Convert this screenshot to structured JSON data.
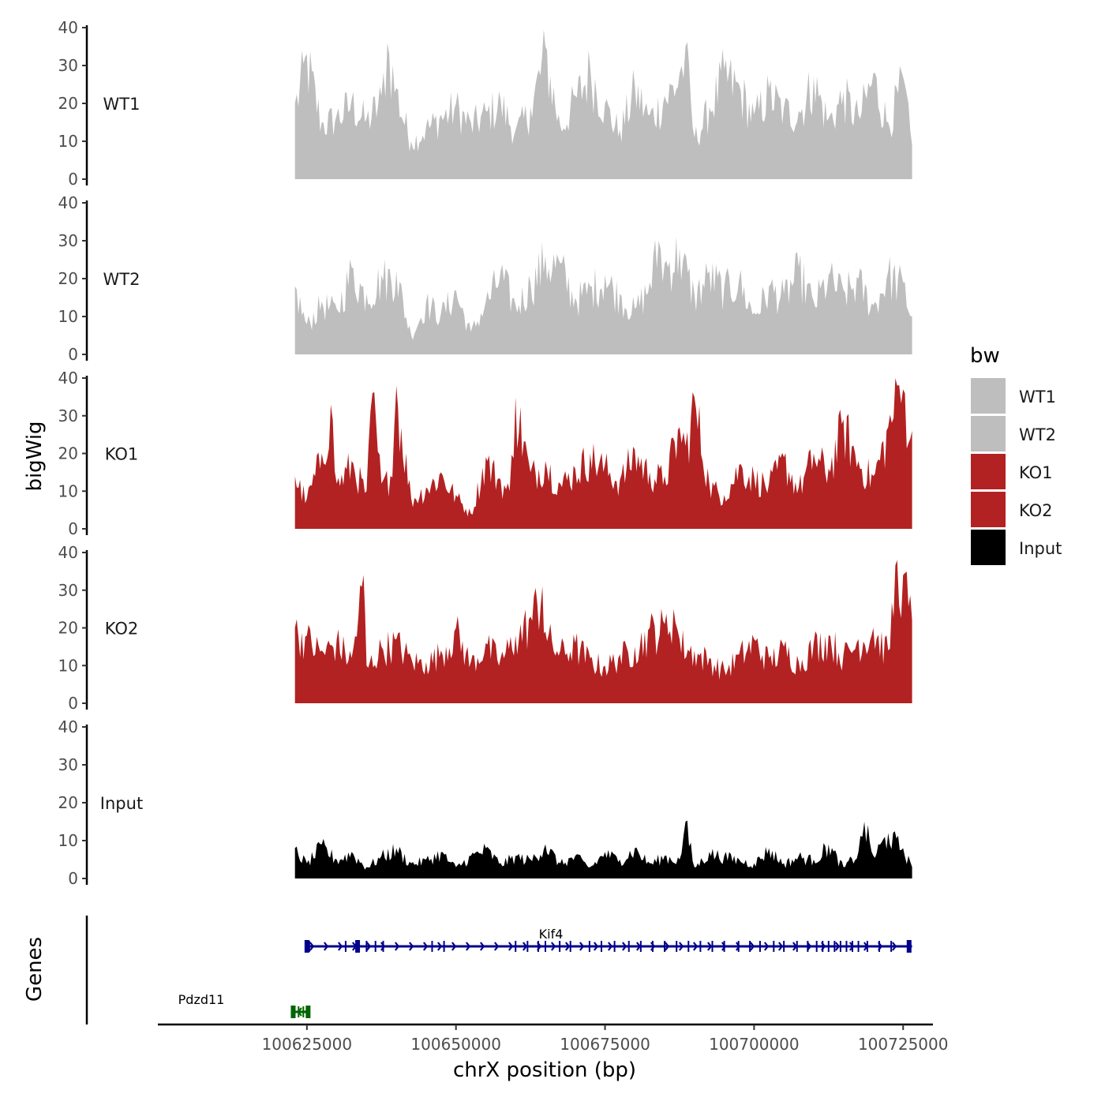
{
  "chart_data": {
    "type": "area",
    "title": "",
    "ylabel": "bigWig",
    "genes_label": "Genes",
    "xlabel": "chrX position (bp)",
    "xlim": [
      100600000,
      100730000
    ],
    "data_range": [
      100623000,
      100726500
    ],
    "x_ticks": [
      "100625000",
      "100650000",
      "100675000",
      "100700000",
      "100725000"
    ],
    "x_tick_values": [
      100625000,
      100650000,
      100675000,
      100700000,
      100725000
    ],
    "ylim": [
      0,
      40
    ],
    "y_ticks": [
      "0",
      "10",
      "20",
      "30",
      "40"
    ],
    "legend": {
      "title": "bw",
      "position": "right",
      "entries": [
        {
          "label": "WT1",
          "color": "#bebebe"
        },
        {
          "label": "WT2",
          "color": "#bebebe"
        },
        {
          "label": "KO1",
          "color": "#b22222"
        },
        {
          "label": "KO2",
          "color": "#b22222"
        },
        {
          "label": "Input",
          "color": "#000000"
        }
      ]
    },
    "series": [
      {
        "name": "WT1",
        "color": "#bebebe",
        "x": [
          100623000,
          100625000,
          100627500,
          100630000,
          100632500,
          100635000,
          100637500,
          100638500,
          100640000,
          100642500,
          100645000,
          100647500,
          100650000,
          100652500,
          100655000,
          100657500,
          100660000,
          100662500,
          100665000,
          100667500,
          100670000,
          100672500,
          100675000,
          100677500,
          100680000,
          100682500,
          100685000,
          100687500,
          100688500,
          100690000,
          100692500,
          100695000,
          100697500,
          100700000,
          100702500,
          100705000,
          100707500,
          100710000,
          100712500,
          100715000,
          100717500,
          100720000,
          100722500,
          100725000,
          100726500
        ],
        "values": [
          20,
          33,
          15,
          17,
          21,
          16,
          22,
          36,
          24,
          10,
          14,
          17,
          20,
          15,
          18,
          21,
          13,
          19,
          35,
          14,
          22,
          30,
          20,
          13,
          25,
          17,
          22,
          28,
          35,
          11,
          19,
          29,
          25,
          17,
          24,
          19,
          18,
          27,
          16,
          23,
          17,
          28,
          15,
          27,
          9
        ]
      },
      {
        "name": "WT2",
        "color": "#bebebe",
        "x": [
          100623000,
          100625000,
          100627500,
          100630000,
          100632500,
          100635000,
          100637500,
          100640000,
          100642500,
          100645000,
          100647500,
          100650000,
          100652500,
          100655000,
          100657500,
          100660000,
          100662500,
          100665000,
          100667500,
          100670000,
          100672500,
          100675000,
          100677500,
          100680000,
          100682500,
          100684000,
          100685000,
          100687500,
          100690000,
          100692500,
          100695000,
          100697500,
          100700000,
          100702500,
          100705000,
          100707500,
          100710000,
          100712500,
          100715000,
          100717500,
          100720000,
          100722500,
          100725000,
          100726500
        ],
        "values": [
          18,
          8,
          14,
          12,
          23,
          16,
          21,
          22,
          5,
          14,
          11,
          17,
          6,
          14,
          22,
          13,
          19,
          26,
          24,
          15,
          18,
          21,
          16,
          12,
          19,
          30,
          24,
          28,
          16,
          22,
          18,
          20,
          11,
          18,
          16,
          23,
          14,
          21,
          17,
          20,
          13,
          22,
          19,
          10
        ]
      },
      {
        "name": "KO1",
        "color": "#b22222",
        "x": [
          100623000,
          100625000,
          100627500,
          100629000,
          100630000,
          100632500,
          100635000,
          100636000,
          100637500,
          100639000,
          100640000,
          100642500,
          100645000,
          100647500,
          100650000,
          100652500,
          100655000,
          100657500,
          100659000,
          100660000,
          100662500,
          100665000,
          100667500,
          100670000,
          100672500,
          100675000,
          100677500,
          100680000,
          100682500,
          100685000,
          100687500,
          100688500,
          100690000,
          100692500,
          100695000,
          100697500,
          100700000,
          100702500,
          100705000,
          100707500,
          100710000,
          100712500,
          100715000,
          100717500,
          100720000,
          100722500,
          100724000,
          100725000,
          100726500
        ],
        "values": [
          14,
          8,
          20,
          33,
          12,
          18,
          10,
          36,
          12,
          14,
          38,
          8,
          11,
          15,
          9,
          4,
          19,
          13,
          10,
          35,
          15,
          18,
          12,
          16,
          20,
          17,
          13,
          21,
          15,
          14,
          27,
          22,
          35,
          12,
          9,
          17,
          14,
          12,
          19,
          11,
          20,
          16,
          29,
          18,
          14,
          27,
          38,
          37,
          26
        ]
      },
      {
        "name": "KO2",
        "color": "#b22222",
        "x": [
          100623000,
          100625000,
          100627500,
          100630000,
          100632500,
          100634500,
          100635000,
          100637500,
          100640000,
          100642500,
          100645000,
          100647500,
          100650000,
          100652500,
          100655000,
          100657500,
          100660000,
          100662500,
          100664500,
          100665000,
          100667500,
          100670000,
          100672500,
          100675000,
          100677500,
          100680000,
          100682500,
          100685000,
          100686500,
          100687500,
          100690000,
          100692500,
          100695000,
          100697500,
          100700000,
          100702500,
          100705000,
          100707500,
          100710000,
          100712500,
          100715000,
          100717500,
          100720000,
          100722500,
          100724000,
          100725000,
          100726500
        ],
        "values": [
          20,
          18,
          14,
          17,
          12,
          34,
          10,
          15,
          17,
          12,
          11,
          14,
          20,
          11,
          16,
          12,
          18,
          23,
          31,
          19,
          14,
          16,
          12,
          10,
          13,
          15,
          20,
          21,
          25,
          17,
          14,
          12,
          9,
          13,
          17,
          12,
          15,
          11,
          16,
          18,
          13,
          17,
          20,
          14,
          38,
          34,
          22
        ]
      },
      {
        "name": "Input",
        "color": "#000000",
        "x": [
          100623000,
          100625000,
          100627500,
          100630000,
          100632500,
          100635000,
          100637500,
          100640000,
          100642500,
          100645000,
          100647500,
          100650000,
          100652500,
          100655000,
          100657500,
          100660000,
          100662500,
          100665000,
          100667500,
          100670000,
          100672500,
          100675000,
          100677500,
          100680000,
          100682500,
          100685000,
          100687500,
          100688500,
          100690000,
          100692500,
          100695000,
          100697500,
          100700000,
          100702500,
          100705000,
          100707500,
          100710000,
          100712500,
          100715000,
          100717500,
          100718500,
          100720000,
          100722500,
          100725000,
          100726500
        ],
        "values": [
          8,
          4,
          9,
          5,
          7,
          3,
          6,
          8,
          4,
          5,
          7,
          3,
          6,
          8,
          4,
          6,
          5,
          9,
          4,
          6,
          3,
          7,
          5,
          8,
          4,
          6,
          5,
          15,
          3,
          7,
          6,
          5,
          4,
          8,
          4,
          6,
          5,
          9,
          3,
          7,
          15,
          6,
          12,
          8,
          3
        ]
      }
    ],
    "genes": [
      {
        "name": "Kif4",
        "start": 100625000,
        "end": 100726500,
        "strand": "+",
        "color": "#00008b",
        "exons": [
          100625000,
          100625400,
          100631500,
          100633500,
          100635000,
          100636500,
          100637800,
          100646000,
          100648000,
          100660000,
          100662000,
          100663800,
          100665000,
          100667400,
          100669200,
          100672400,
          100674400,
          100676600,
          100679000,
          100681000,
          100683000,
          100685000,
          100687000,
          100689000,
          100691000,
          100693000,
          100695000,
          100697400,
          100699300,
          100701000,
          100703300,
          100705000,
          100707200,
          100709000,
          100710500,
          100711500,
          100712500,
          100713500,
          100714500,
          100715500,
          100716500,
          100717500,
          100719000,
          100721000,
          100723000,
          100726000
        ]
      },
      {
        "name": "Pdzd11",
        "start": 100622500,
        "end": 100625500,
        "strand": "-",
        "color": "#006400",
        "exons": [
          100622700,
          100623600,
          100624400,
          100625200
        ]
      }
    ]
  }
}
